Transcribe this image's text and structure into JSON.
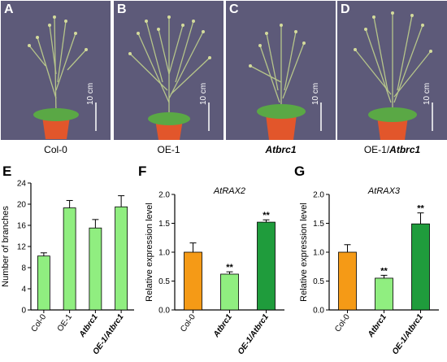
{
  "photos": [
    {
      "letter": "A",
      "caption": "Col-0",
      "scale": "10 cm",
      "italic": false
    },
    {
      "letter": "B",
      "caption": "OE-1",
      "scale": "10 cm",
      "italic": false
    },
    {
      "letter": "C",
      "caption": "Atbrc1",
      "scale": "10 cm",
      "italic": true
    },
    {
      "letter": "D",
      "caption": "OE-1/",
      "caption_italic": "Atbrc1",
      "scale": "10 cm",
      "italic": false
    }
  ],
  "colors": {
    "green_light": "#90ee80",
    "orange": "#f59a16",
    "green_dark": "#1f9c3c",
    "bg_photo": "#5d5a79"
  },
  "chart_data": [
    {
      "panel": "E",
      "type": "bar",
      "ylabel": "Number of branches",
      "title": "",
      "categories": [
        "Col-0",
        "OE-1",
        "Atbrc1",
        "OE-1/Atbrc1"
      ],
      "values": [
        10.2,
        19.3,
        15.5,
        19.5
      ],
      "errors": [
        0.6,
        1.4,
        1.6,
        2.1
      ],
      "significance": [
        "",
        "",
        "",
        ""
      ],
      "ylim": [
        0,
        24
      ],
      "yticks": [
        "0",
        "4",
        "8",
        "12",
        "16",
        "20",
        "24"
      ],
      "bar_colors": [
        "#90ee80",
        "#90ee80",
        "#90ee80",
        "#90ee80"
      ]
    },
    {
      "panel": "F",
      "type": "bar",
      "ylabel": "Relative expression level",
      "title": "AtRAX2",
      "categories": [
        "Col-0",
        "Atbrc1",
        "OE-1/Atbrc1"
      ],
      "values": [
        1.0,
        0.62,
        1.52
      ],
      "errors": [
        0.16,
        0.04,
        0.04
      ],
      "significance": [
        "",
        "**",
        "**"
      ],
      "ylim": [
        0,
        2.0
      ],
      "yticks": [
        "0.0",
        "0.5",
        "1.0",
        "1.5",
        "2.0"
      ],
      "bar_colors": [
        "#f59a16",
        "#90ee80",
        "#1f9c3c"
      ]
    },
    {
      "panel": "G",
      "type": "bar",
      "ylabel": "Relative expression level",
      "title": "AtRAX3",
      "categories": [
        "Col-0",
        "Atbrc1",
        "OE-1/Atbrc1"
      ],
      "values": [
        1.0,
        0.55,
        1.49
      ],
      "errors": [
        0.13,
        0.05,
        0.19
      ],
      "significance": [
        "",
        "**",
        "**"
      ],
      "ylim": [
        0,
        2.0
      ],
      "yticks": [
        "0.0",
        "0.5",
        "1.0",
        "1.5",
        "2.0"
      ],
      "bar_colors": [
        "#f59a16",
        "#90ee80",
        "#1f9c3c"
      ]
    }
  ]
}
